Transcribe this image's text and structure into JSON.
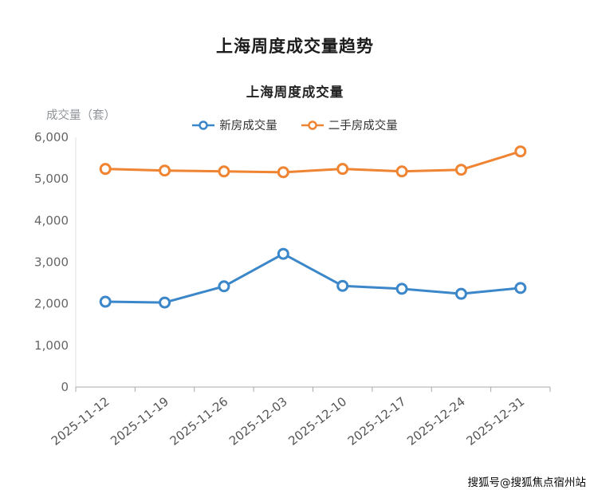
{
  "page": {
    "main_title": "上海周度成交量趋势",
    "watermark": "搜狐号@搜狐焦点宿州站"
  },
  "chart_data": {
    "type": "line",
    "title": "上海周度成交量",
    "y_axis_name": "成交量（套）",
    "categories": [
      "2025-11-12",
      "2025-11-19",
      "2025-11-26",
      "2025-12-03",
      "2025-12-10",
      "2025-12-17",
      "2025-12-24",
      "2025-12-31"
    ],
    "series": [
      {
        "name": "新房成交量",
        "color": "#3b87c9",
        "values": [
          2050,
          2030,
          2420,
          3200,
          2430,
          2360,
          2240,
          2380
        ]
      },
      {
        "name": "二手房成交量",
        "color": "#ef8432",
        "values": [
          5240,
          5200,
          5180,
          5160,
          5240,
          5180,
          5220,
          5660
        ]
      }
    ],
    "ylim": [
      0,
      6000
    ],
    "y_ticks": [
      0,
      1000,
      2000,
      3000,
      4000,
      5000,
      6000
    ],
    "legend_position": "top",
    "grid": false,
    "marker": "empty-circle"
  }
}
